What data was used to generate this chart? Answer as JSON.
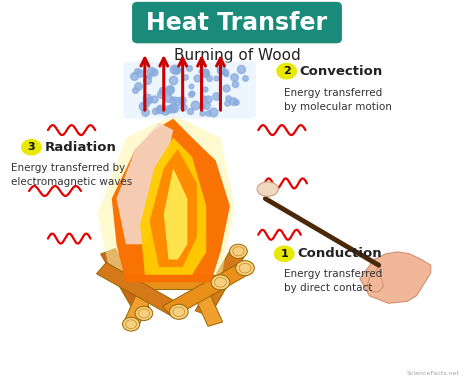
{
  "bg_color": "#ffffff",
  "title_text": "Heat Transfer",
  "title_bg_color": "#1a8a7a",
  "title_text_color": "#ffffff",
  "subtitle_text": "Burning of Wood",
  "subtitle_color": "#222222",
  "convection_num": "2",
  "convection_label": "Convection",
  "convection_desc": "Energy transferred\nby molecular motion",
  "convection_label_color": "#222222",
  "convection_num_bg": "#e8e800",
  "radiation_num": "3",
  "radiation_label": "Radiation",
  "radiation_desc": "Energy transferred by\nelectromagnetic waves",
  "radiation_label_color": "#222222",
  "radiation_num_bg": "#e8e800",
  "conduction_num": "1",
  "conduction_label": "Conduction",
  "conduction_desc": "Energy transferred\nby direct contact",
  "conduction_label_color": "#222222",
  "conduction_num_bg": "#e8e800",
  "wavy_color": "#e60000",
  "arrow_color": "#cc0000",
  "dot_color": "#88aadd",
  "watermark": "ScienceFacts.net",
  "fig_width": 4.74,
  "fig_height": 3.82,
  "dpi": 100
}
